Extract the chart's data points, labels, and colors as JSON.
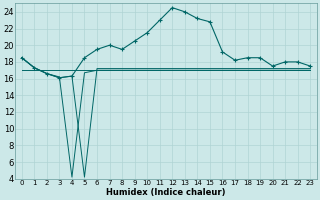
{
  "xlabel": "Humidex (Indice chaleur)",
  "bg_color": "#cce8e8",
  "grid_color": "#b0d4d4",
  "line_color": "#006666",
  "xlim": [
    -0.5,
    23.5
  ],
  "ylim": [
    4,
    25
  ],
  "yticks": [
    4,
    6,
    8,
    10,
    12,
    14,
    16,
    18,
    20,
    22,
    24
  ],
  "xticks": [
    0,
    1,
    2,
    3,
    4,
    5,
    6,
    7,
    8,
    9,
    10,
    11,
    12,
    13,
    14,
    15,
    16,
    17,
    18,
    19,
    20,
    21,
    22,
    23
  ],
  "y_main": [
    18.5,
    17.3,
    16.6,
    16.1,
    16.3,
    18.5,
    19.5,
    20.0,
    19.5,
    20.5,
    21.5,
    23.0,
    24.5,
    24.0,
    23.2,
    22.8,
    19.2,
    18.2,
    18.5,
    18.5,
    17.5,
    18.0,
    18.0,
    17.5
  ],
  "y_dip1": [
    18.5,
    17.3,
    16.6,
    16.1,
    16.3,
    4.2,
    17.2,
    17.2,
    17.2,
    17.2,
    17.2,
    17.2,
    17.2,
    17.2,
    17.2,
    17.2,
    17.2,
    17.2,
    17.2,
    17.2,
    17.2,
    17.2,
    17.2,
    17.2
  ],
  "y_dip2": [
    18.5,
    17.3,
    16.6,
    16.2,
    4.2,
    16.7,
    17.0,
    17.0,
    17.0,
    17.0,
    17.0,
    17.0,
    17.0,
    17.0,
    17.0,
    17.0,
    17.0,
    17.0,
    17.0,
    17.0,
    17.0,
    17.0,
    17.0,
    17.0
  ],
  "y_flat": [
    17.0,
    17.0,
    17.0,
    17.0,
    17.0,
    17.0,
    17.0,
    17.0,
    17.0,
    17.0,
    17.0,
    17.0,
    17.0,
    17.0,
    17.0,
    17.0,
    17.0,
    17.0,
    17.0,
    17.0,
    17.0,
    17.0,
    17.0,
    17.0
  ],
  "xlabel_fontsize": 6,
  "tick_fontsize_x": 5,
  "tick_fontsize_y": 6
}
